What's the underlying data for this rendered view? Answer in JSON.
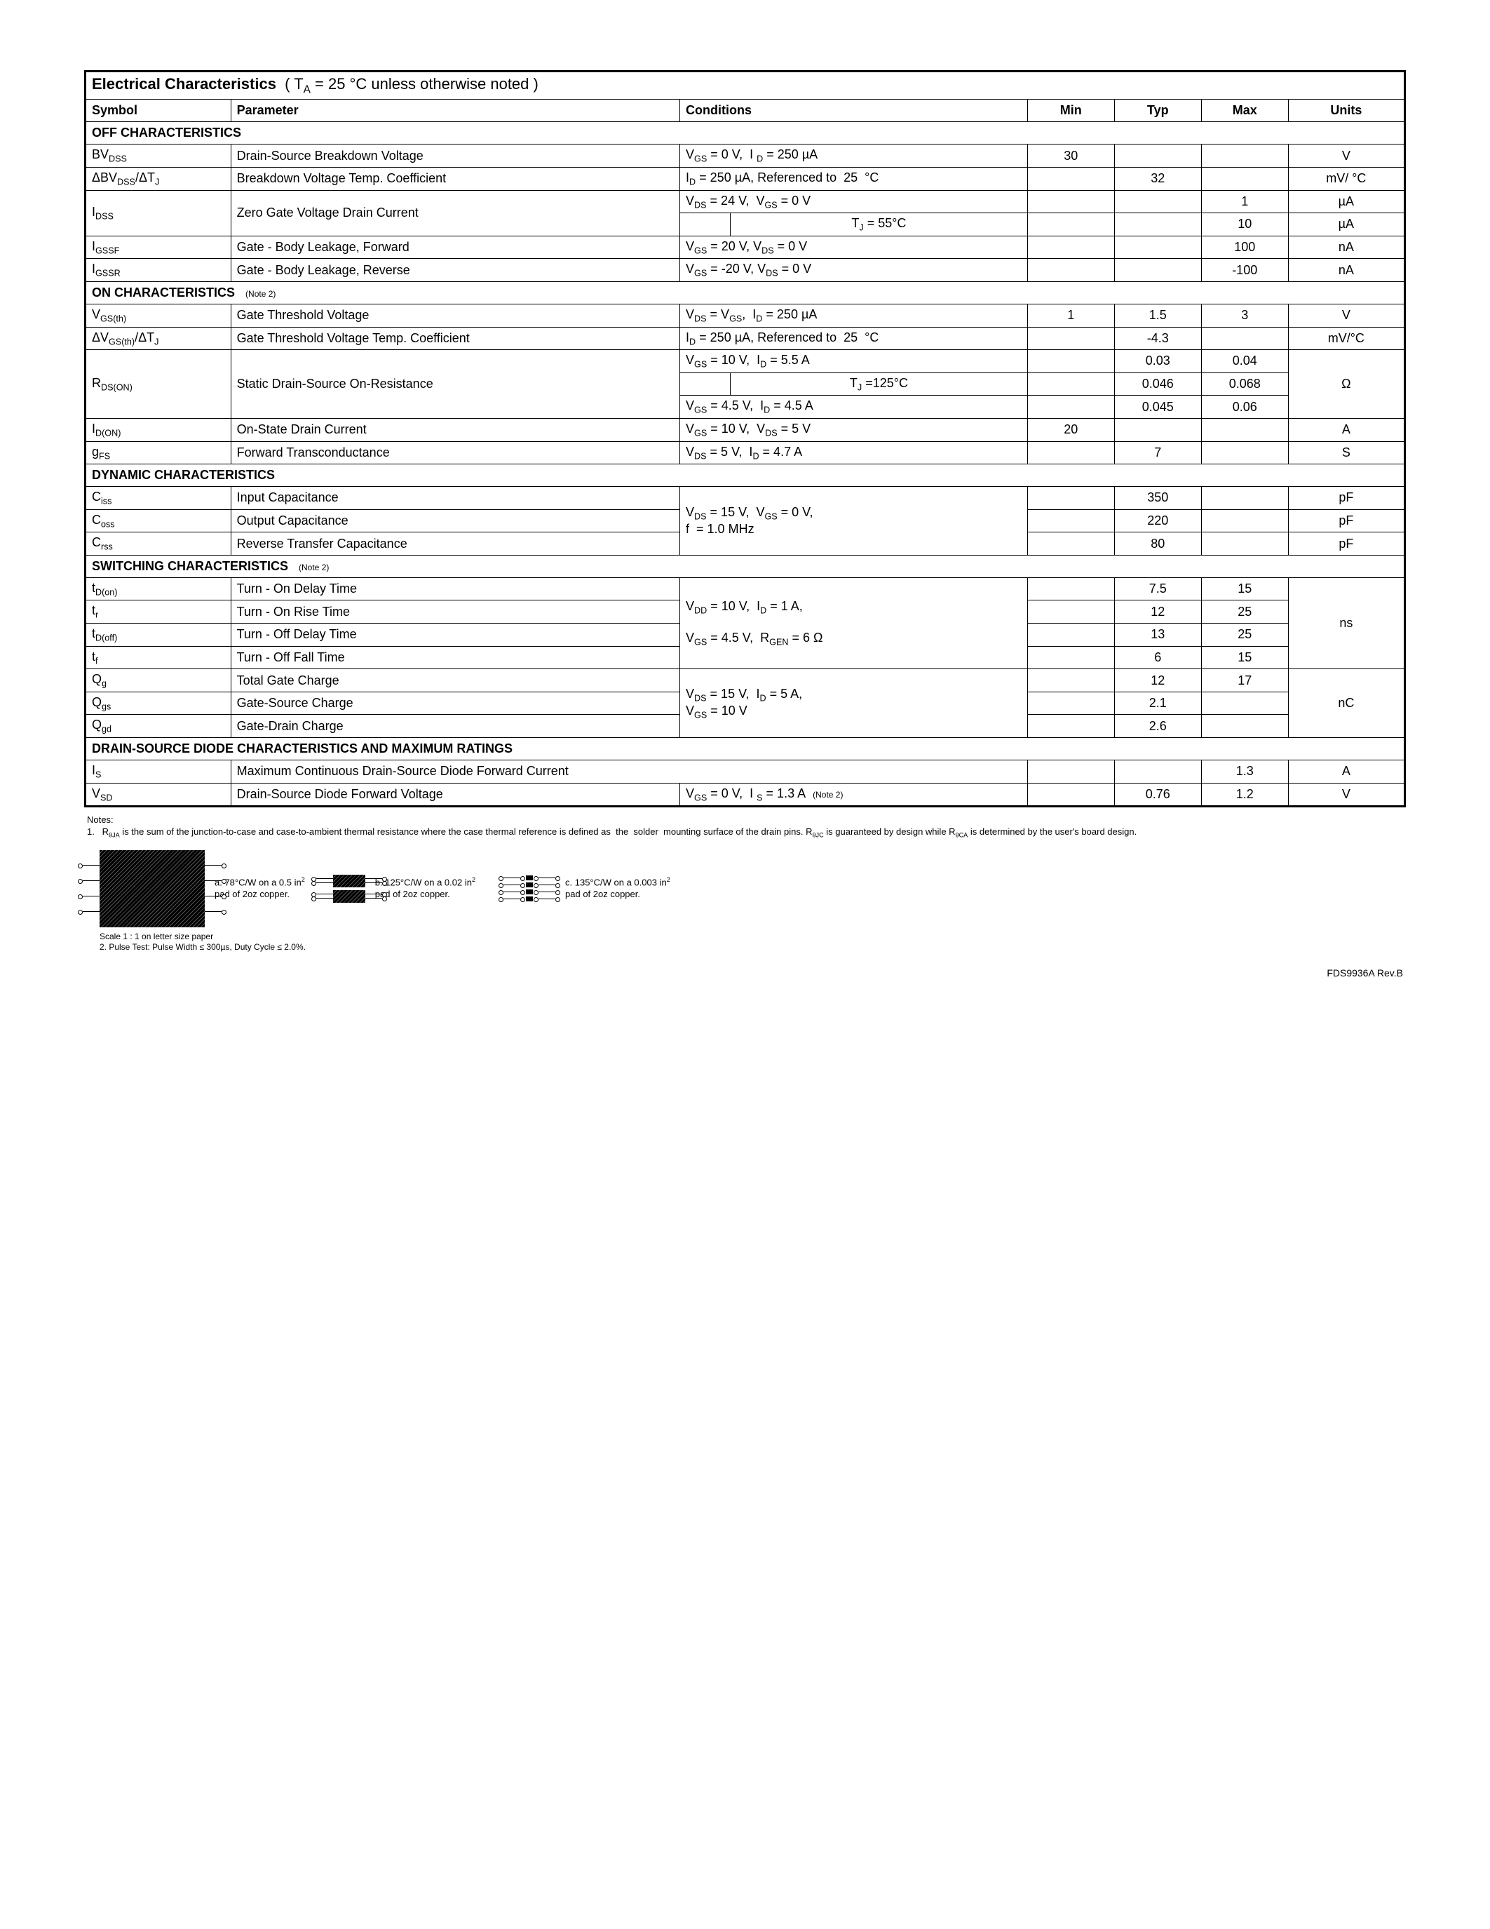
{
  "title_bold": "Electrical Characteristics",
  "title_rest": "  ( T_A = 25 °C unless otherwise noted )",
  "headers": {
    "symbol": "Symbol",
    "parameter": "Parameter",
    "conditions": "Conditions",
    "min": "Min",
    "typ": "Typ",
    "max": "Max",
    "units": "Units"
  },
  "sections": {
    "off": "OFF CHARACTERISTICS",
    "on": "ON CHARACTERISTICS",
    "on_note": "(Note 2)",
    "dyn": "DYNAMIC  CHARACTERISTICS",
    "sw": "SWITCHING  CHARACTERISTICS",
    "sw_note": "(Note 2)",
    "ds": "DRAIN-SOURCE DIODE CHARACTERISTICS AND MAXIMUM RATINGS"
  },
  "rows": {
    "bvdss": {
      "param": "Drain-Source Breakdown Voltage",
      "cond": "V_GS = 0 V,  I_D = 250 µA",
      "min": "30",
      "typ": "",
      "max": "",
      "units": "V"
    },
    "dbvdss": {
      "param": "Breakdown Voltage Temp. Coefficient",
      "cond": "I_D = 250 µA, Referenced to  25  °C",
      "min": "",
      "typ": "32",
      "max": "",
      "units": "mV/ °C"
    },
    "idss1": {
      "param": "Zero Gate Voltage  Drain Current",
      "cond": "V_DS = 24 V,  V_GS = 0 V",
      "min": "",
      "typ": "",
      "max": "1",
      "units": "µA"
    },
    "idss2": {
      "sub": "T_J = 55°C",
      "min": "",
      "typ": "",
      "max": "10",
      "units": "µA"
    },
    "igssf": {
      "param": "Gate - Body Leakage, Forward",
      "cond": "V_GS = 20 V, V_DS = 0 V",
      "min": "",
      "typ": "",
      "max": "100",
      "units": "nA"
    },
    "igssr": {
      "param": "Gate - Body Leakage, Reverse",
      "cond": "V_GS = -20 V, V_DS = 0 V",
      "min": "",
      "typ": "",
      "max": "-100",
      "units": "nA"
    },
    "vgsth": {
      "param": "Gate Threshold Voltage",
      "cond": "V_DS = V_GS,  I_D = 250 µA",
      "min": "1",
      "typ": "1.5",
      "max": "3",
      "units": "V"
    },
    "dvgsth": {
      "param": "Gate Threshold Voltage Temp. Coefficient",
      "cond": "I_D = 250 µA, Referenced to  25  °C",
      "min": "",
      "typ": "-4.3",
      "max": "",
      "units": "mV/°C"
    },
    "rdson1": {
      "param": "Static Drain-Source On-Resistance",
      "cond": "V_GS = 10 V,  I_D = 5.5 A",
      "min": "",
      "typ": "0.03",
      "max": "0.04",
      "units": "Ω"
    },
    "rdson2": {
      "sub": "T_J =125°C",
      "min": "",
      "typ": "0.046",
      "max": "0.068"
    },
    "rdson3": {
      "cond": "V_GS = 4.5 V,  I_D = 4.5 A",
      "min": "",
      "typ": "0.045",
      "max": "0.06"
    },
    "idon": {
      "param": "On-State Drain Current",
      "cond": "V_GS = 10 V,  V_DS = 5 V",
      "min": "20",
      "typ": "",
      "max": "",
      "units": "A"
    },
    "gfs": {
      "param": "Forward Transconductance",
      "cond": "V_DS = 5 V,  I_D = 4.7 A",
      "min": "",
      "typ": "7",
      "max": "",
      "units": "S"
    },
    "ciss": {
      "param": "Input Capacitance",
      "cond1": "V_DS = 15 V,  V_GS = 0 V,",
      "cond2": "f  = 1.0 MHz",
      "min": "",
      "typ": "350",
      "max": "",
      "units": "pF"
    },
    "coss": {
      "param": "Output Capacitance",
      "min": "",
      "typ": "220",
      "max": "",
      "units": "pF"
    },
    "crss": {
      "param": "Reverse Transfer Capacitance",
      "min": "",
      "typ": "80",
      "max": "",
      "units": "pF"
    },
    "tdon": {
      "param": "Turn - On Delay Time",
      "cond1": "V_DD = 10 V,  I_D = 1 A,",
      "cond2": "V_GS = 4.5 V,  R_GEN = 6 Ω",
      "min": "",
      "typ": "7.5",
      "max": "15",
      "units": "ns"
    },
    "tr": {
      "param": "Turn - On Rise Time",
      "min": "",
      "typ": "12",
      "max": "25"
    },
    "tdoff": {
      "param": "Turn - Off Delay Time",
      "min": "",
      "typ": "13",
      "max": "25"
    },
    "tf": {
      "param": "Turn - Off Fall Time",
      "min": "",
      "typ": "6",
      "max": "15"
    },
    "qg": {
      "param": "Total Gate Charge",
      "cond1": "V_DS = 15 V,  I_D = 5 A,",
      "cond2": "V_GS = 10 V",
      "min": "",
      "typ": "12",
      "max": "17",
      "units": "nC"
    },
    "qgs": {
      "param": "Gate-Source Charge",
      "min": "",
      "typ": "2.1",
      "max": ""
    },
    "qgd": {
      "param": "Gate-Drain Charge",
      "min": "",
      "typ": "2.6",
      "max": ""
    },
    "is": {
      "param": "Maximum Continuous Drain-Source Diode Forward Current",
      "min": "",
      "typ": "",
      "max": "1.3",
      "units": "A"
    },
    "vsd": {
      "param": "Drain-Source Diode Forward Voltage",
      "cond": "V_GS = 0 V,  I_S = 1.3 A   (Note 2)",
      "min": "",
      "typ": "0.76",
      "max": "1.2",
      "units": "V"
    }
  },
  "symbols": {
    "bvdss": "BV_DSS",
    "dbvdss": "ΔBV_DSS/ΔT_J",
    "idss": "I_DSS",
    "igssf": "I_GSSF",
    "igssr": "I_GSSR",
    "vgsth": "V_GS(th)",
    "dvgsth": "ΔV_GS(th)/ΔT_J",
    "rdson": "R_DS(ON)",
    "idon": "I_D(ON)",
    "gfs": "g_FS",
    "ciss": "C_iss",
    "coss": "C_oss",
    "crss": "C_rss",
    "tdon": "t_D(on)",
    "tr": "t_r",
    "tdoff": "t_D(off)",
    "tf": "t_f",
    "qg": "Q_g",
    "qgs": "Q_gs",
    "qgd": "Q_gd",
    "is": "I_S",
    "vsd": "V_SD"
  },
  "notes_label": "Notes:",
  "note1": "R_θJA is the sum of the junction-to-case and case-to-ambient thermal resistance where the case thermal reference is defined as  the  solder  mounting surface of the drain pins. R_θJC is guaranteed by design while R_θCA is determined by the user's board design.",
  "pad_a": "a. 78°C/W on a 0.5 in²\npad of 2oz copper.",
  "pad_b": "b. 125°C/W on a 0.02 in²\npad of 2oz copper.",
  "pad_c": "c. 135°C/W on a 0.003 in²\npad of 2oz copper.",
  "scale": "Scale 1 : 1 on letter size paper",
  "note2": "2. Pulse Test: Pulse Width ≤ 300µs, Duty Cycle ≤ 2.0%.",
  "footer": "FDS9936A Rev.B"
}
